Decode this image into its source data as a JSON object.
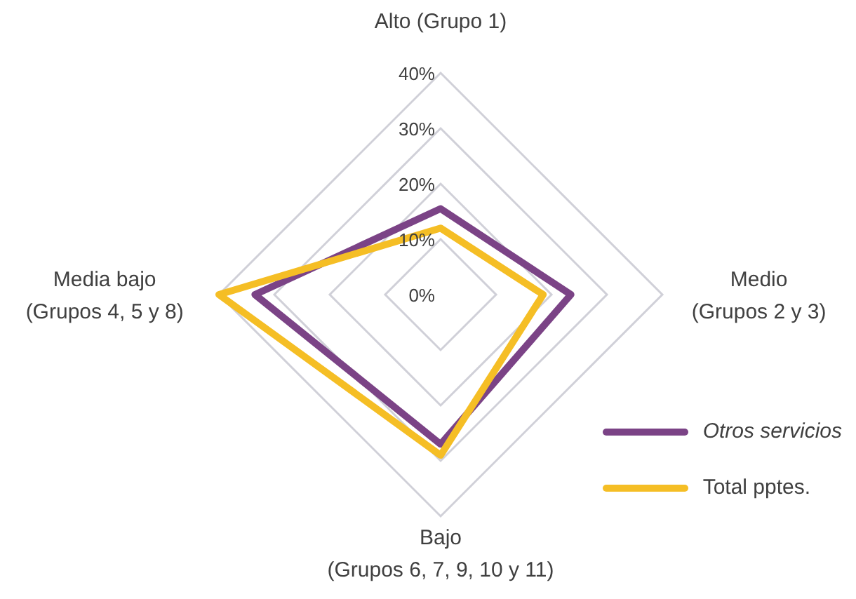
{
  "chart_data": {
    "type": "radar",
    "categories": [
      "Alto  (Grupo 1)",
      "Medio\n(Grupos 2 y 3)",
      "Bajo\n(Grupos 6, 7, 9, 10 y 11)",
      "Media bajo\n(Grupos 4, 5 y 8)"
    ],
    "series": [
      {
        "name": "Otros servicios",
        "color": "#7b4386",
        "values": [
          15.5,
          23.5,
          27,
          33.5
        ]
      },
      {
        "name": "Total pptes.",
        "color": "#f5be25",
        "values": [
          12,
          18.5,
          29,
          40
        ]
      }
    ],
    "ylim": [
      0,
      40
    ],
    "yticks": [
      {
        "value": 0,
        "label": "0%"
      },
      {
        "value": 10,
        "label": "10%"
      },
      {
        "value": 20,
        "label": "20%"
      },
      {
        "value": 30,
        "label": "30%"
      },
      {
        "value": 40,
        "label": "40%"
      }
    ],
    "grid": true,
    "legend": "bottom right"
  }
}
